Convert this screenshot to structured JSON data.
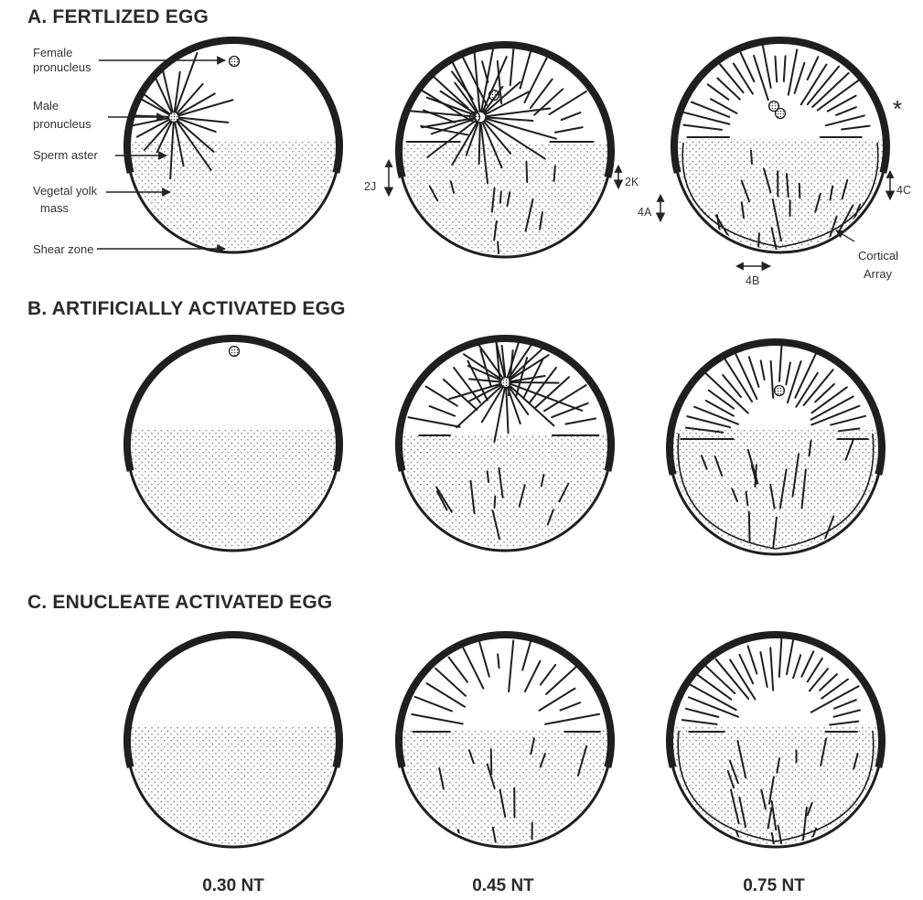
{
  "sections": {
    "a": {
      "heading": "A.  FERTLIZED EGG"
    },
    "b": {
      "heading": "B.  ARTIFICIALLY ACTIVATED EGG"
    },
    "c": {
      "heading": "C.  ENUCLEATE ACTIVATED EGG"
    }
  },
  "callouts": {
    "female_pronucleus_1": "Female",
    "female_pronucleus_2": "pronucleus",
    "male_pronucleus_1": "Male",
    "male_pronucleus_2": "pronucleus",
    "sperm_aster": "Sperm aster",
    "vegetal_yolk_1": "Vegetal yolk",
    "vegetal_yolk_2": "mass",
    "shear_zone": "Shear zone",
    "cortical_array_1": "Cortical",
    "cortical_array_2": "Array"
  },
  "markers": {
    "m2j": "2J",
    "m2k": "2K",
    "m4a": "4A",
    "m4b": "4B",
    "m4c": "4C",
    "asterisk": "*"
  },
  "columns": {
    "t1": "0.30 NT",
    "t2": "0.45 NT",
    "t3": "0.75 NT"
  },
  "colors": {
    "ink": "#1f1f1f",
    "stipple": "#8a8a8a",
    "background": "#ffffff"
  }
}
